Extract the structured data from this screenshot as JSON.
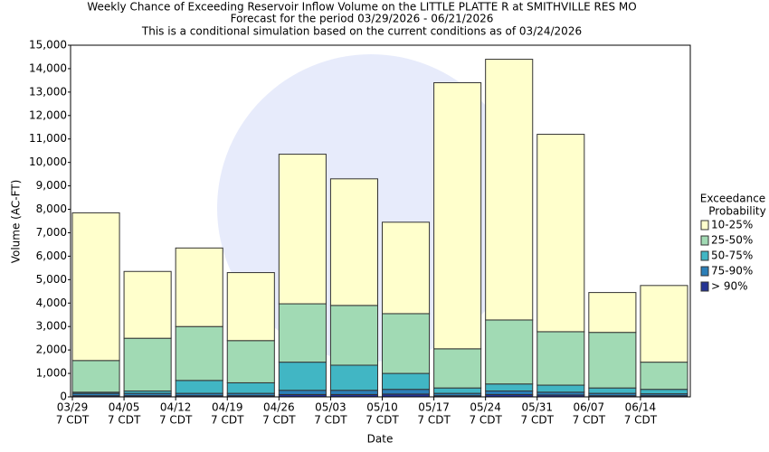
{
  "chart_data": {
    "type": "stacked_bar",
    "title": "Weekly Chance of Exceeding Reservoir Inflow Volume on the LITTLE PLATTE R at SMITHVILLE RES MO",
    "subtitles": [
      "Forecast for the period 03/29/2026 - 06/21/2026",
      "This is a conditional simulation based on the current conditions as of 03/24/2026"
    ],
    "x_label": "Date",
    "y_label": "Volume (AC-FT)",
    "legend_title": [
      "Exceedance",
      "Probability"
    ],
    "legend": "right",
    "categories": [
      [
        "03/29",
        "7 CDT"
      ],
      [
        "04/05",
        "7 CDT"
      ],
      [
        "04/12",
        "7 CDT"
      ],
      [
        "04/19",
        "7 CDT"
      ],
      [
        "04/26",
        "7 CDT"
      ],
      [
        "05/03",
        "7 CDT"
      ],
      [
        "05/10",
        "7 CDT"
      ],
      [
        "05/17",
        "7 CDT"
      ],
      [
        "05/24",
        "7 CDT"
      ],
      [
        "05/31",
        "7 CDT"
      ],
      [
        "06/07",
        "7 CDT"
      ],
      [
        "06/14",
        "7 CDT"
      ]
    ],
    "series": [
      {
        "name": "> 90%",
        "color": "#253494",
        "values": [
          50,
          50,
          50,
          50,
          100,
          100,
          120,
          50,
          100,
          80,
          50,
          50
        ]
      },
      {
        "name": "75-90%",
        "color": "#2c7fb8",
        "values": [
          100,
          100,
          100,
          100,
          180,
          180,
          200,
          100,
          150,
          120,
          100,
          80
        ]
      },
      {
        "name": "50-75%",
        "color": "#41b6c4",
        "values": [
          50,
          100,
          550,
          450,
          1200,
          1070,
          680,
          230,
          300,
          300,
          230,
          190
        ]
      },
      {
        "name": "25-50%",
        "color": "#a1dab4",
        "values": [
          1350,
          2250,
          2300,
          1800,
          2490,
          2550,
          2550,
          1670,
          2730,
          2280,
          2370,
          1160
        ]
      },
      {
        "name": "10-25%",
        "color": "#ffffcc",
        "values": [
          6300,
          2850,
          3350,
          2900,
          6380,
          5400,
          3900,
          11350,
          11120,
          8420,
          1700,
          3270
        ]
      }
    ],
    "ylim": [
      0,
      15000
    ],
    "yticks": [
      0,
      {
        "value": 1000,
        "label": "1,000"
      },
      {
        "value": 2000,
        "label": "2,000"
      },
      {
        "value": 3000,
        "label": "3,000"
      },
      {
        "value": 4000,
        "label": "4,000"
      },
      {
        "value": 5000,
        "label": "5,000"
      },
      {
        "value": 6000,
        "label": "6,000"
      },
      {
        "value": 7000,
        "label": "7,000"
      },
      {
        "value": 8000,
        "label": "8,000"
      },
      {
        "value": 9000,
        "label": "9,000"
      },
      {
        "value": 10000,
        "label": "10,000"
      },
      {
        "value": 11000,
        "label": "11,000"
      },
      {
        "value": 12000,
        "label": "12,000"
      },
      {
        "value": 13000,
        "label": "13,000"
      },
      {
        "value": 14000,
        "label": "14,000"
      },
      {
        "value": 15000,
        "label": "15,000"
      }
    ],
    "grid": false
  }
}
